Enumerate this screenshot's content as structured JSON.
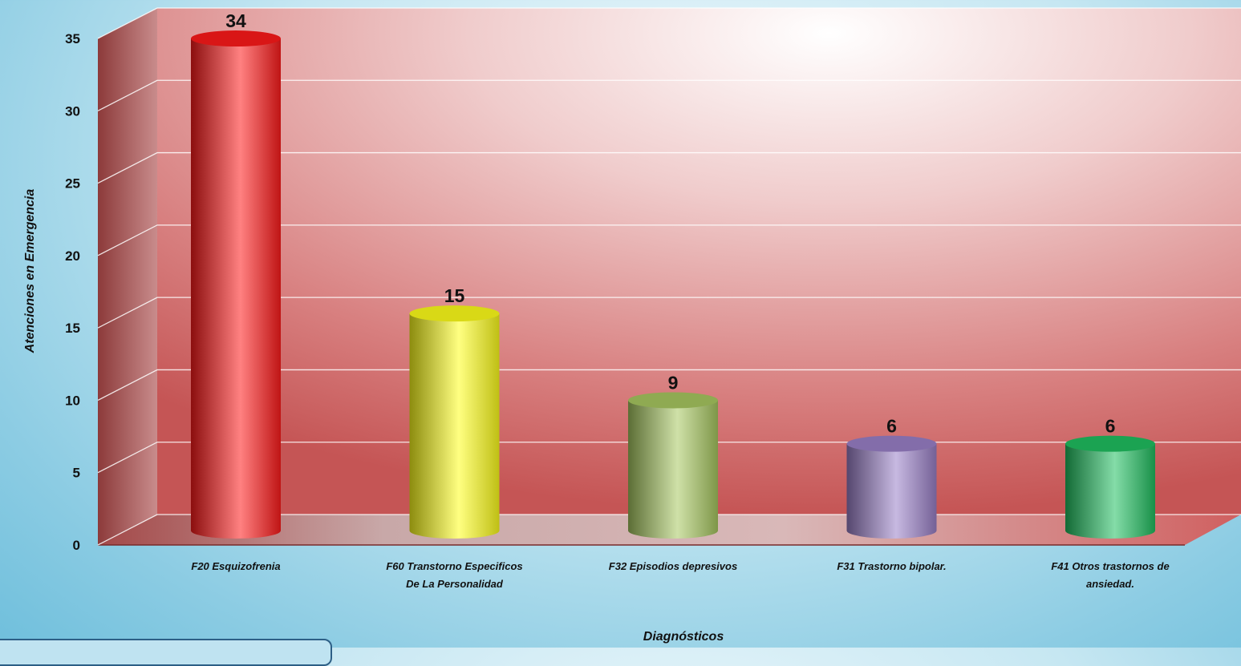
{
  "chart_data": {
    "type": "bar",
    "categories": [
      "F20 Esquizofrenia",
      "F60 Transtorno Especificos De La Personalidad",
      "F32 Episodios depresivos",
      "F31 Trastorno bipolar.",
      "F41 Otros trastornos de ansiedad."
    ],
    "category_lines": [
      [
        "F20 Esquizofrenia"
      ],
      [
        "F60 Transtorno Especificos",
        "De La Personalidad"
      ],
      [
        "F32 Episodios depresivos"
      ],
      [
        "F31 Trastorno bipolar."
      ],
      [
        "F41 Otros trastornos de",
        "ansiedad."
      ]
    ],
    "values": [
      34,
      15,
      9,
      6,
      6
    ],
    "value_labels": [
      "34",
      "15",
      "9",
      "6",
      "6"
    ],
    "bar_colors": [
      "#ff1a1a",
      "#ffff1a",
      "#a8c860",
      "#9a80c8",
      "#20c060"
    ],
    "bar_shape": "cylinder",
    "ylabel": "Atenciones en Emergencia",
    "xlabel": "Diagnósticos",
    "ylim": [
      0,
      35
    ],
    "yticks": [
      0,
      5,
      10,
      15,
      20,
      25,
      30,
      35
    ],
    "grid": true,
    "legend": "none"
  }
}
